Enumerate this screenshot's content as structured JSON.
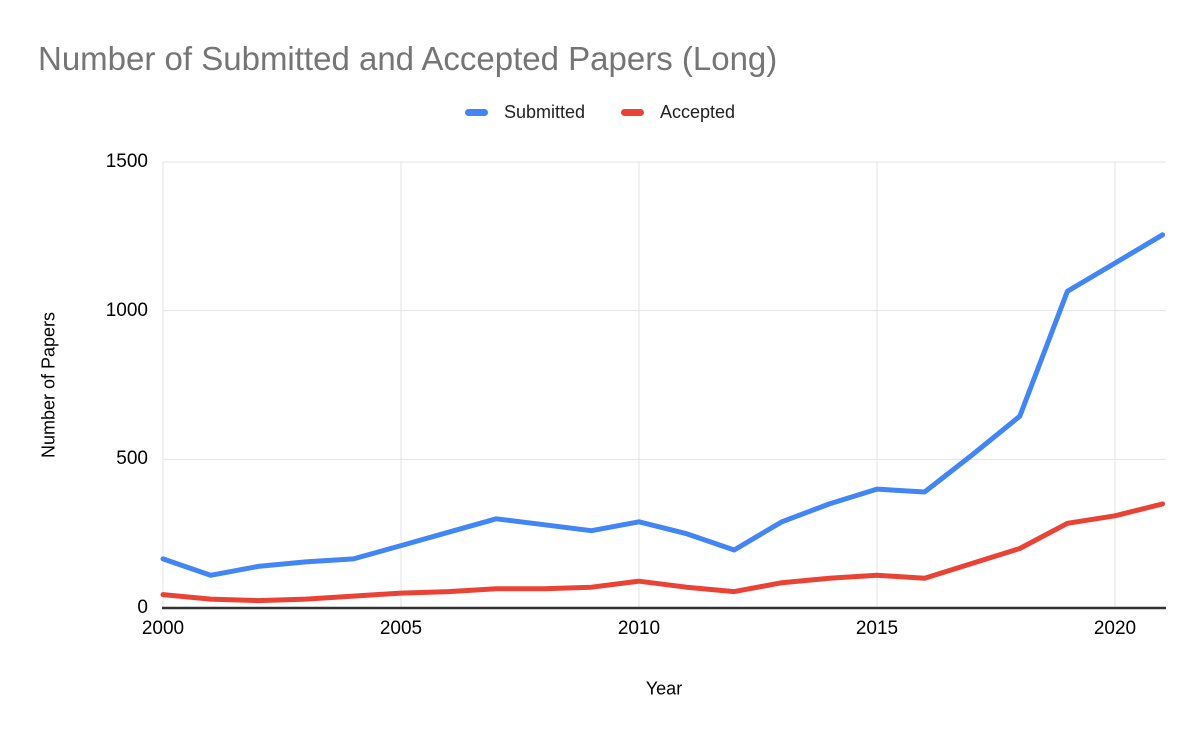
{
  "chart_data": {
    "type": "line",
    "title": "Number of Submitted and Accepted Papers (Long)",
    "xlabel": "Year",
    "ylabel": "Number of Papers",
    "x": [
      2000,
      2001,
      2002,
      2003,
      2004,
      2005,
      2006,
      2007,
      2008,
      2009,
      2010,
      2011,
      2012,
      2013,
      2014,
      2015,
      2016,
      2017,
      2018,
      2019,
      2020,
      2021
    ],
    "series": [
      {
        "name": "Submitted",
        "color": "#4285F4",
        "values": [
          165,
          110,
          140,
          155,
          165,
          210,
          255,
          300,
          280,
          260,
          290,
          250,
          195,
          290,
          350,
          400,
          390,
          515,
          645,
          1065,
          1160,
          1255
        ]
      },
      {
        "name": "Accepted",
        "color": "#EA4335",
        "values": [
          45,
          30,
          25,
          30,
          40,
          50,
          55,
          65,
          65,
          70,
          90,
          70,
          55,
          85,
          100,
          110,
          100,
          150,
          200,
          285,
          310,
          350
        ]
      }
    ],
    "ylim": [
      0,
      1500
    ],
    "y_ticks": [
      0,
      500,
      1000,
      1500
    ],
    "x_ticks": [
      2000,
      2005,
      2010,
      2015,
      2020
    ],
    "grid": true,
    "legend_position": "top",
    "colors": {
      "title": "#757575",
      "axis_text": "#000000",
      "gridline": "#e3e3e3",
      "baseline": "#333333"
    }
  }
}
